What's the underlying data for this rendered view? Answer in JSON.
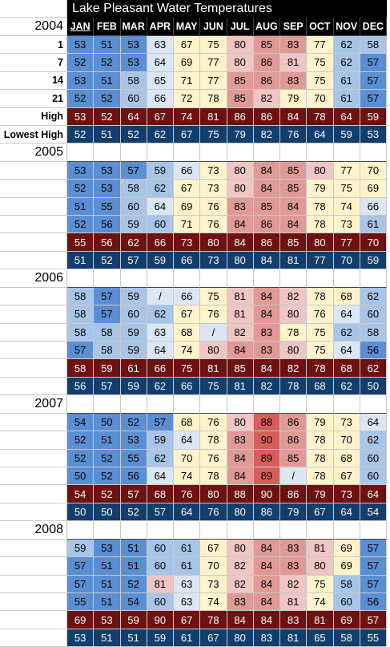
{
  "title": "Lake Pleasant Water Temperatures",
  "months": [
    "JAN",
    "FEB",
    "MAR",
    "APR",
    "MAY",
    "JUN",
    "JUL",
    "AUG",
    "SEP",
    "OCT",
    "NOV",
    "DEC"
  ],
  "colors": {
    "cold": "#5b8fd3",
    "cool": "#a8c4e6",
    "pale": "#dbe6f3",
    "mild": "#fff3cc",
    "warm": "#efc6c4",
    "hot": "#df9a96",
    "peak": "#d55f5b",
    "high_row": "#6e1111",
    "low_row": "#123e6e"
  },
  "years": [
    {
      "year": "2004",
      "rows": [
        {
          "label": "1",
          "kind": "day",
          "values": [
            "53",
            "51",
            "53",
            "63",
            "67",
            "75",
            "80",
            "85",
            "83",
            "77",
            "62",
            "58"
          ]
        },
        {
          "label": "7",
          "kind": "day",
          "values": [
            "52",
            "52",
            "53",
            "64",
            "69",
            "77",
            "80",
            "86",
            "81",
            "75",
            "62",
            "57"
          ]
        },
        {
          "label": "14",
          "kind": "day",
          "values": [
            "53",
            "51",
            "58",
            "65",
            "71",
            "77",
            "85",
            "86",
            "83",
            "75",
            "61",
            "57"
          ]
        },
        {
          "label": "21",
          "kind": "day",
          "values": [
            "52",
            "52",
            "60",
            "66",
            "72",
            "78",
            "85",
            "82",
            "79",
            "70",
            "61",
            "57"
          ]
        },
        {
          "label": "High",
          "kind": "high",
          "values": [
            "53",
            "52",
            "64",
            "67",
            "74",
            "81",
            "86",
            "86",
            "84",
            "78",
            "64",
            "59"
          ]
        },
        {
          "label": "Lowest High",
          "kind": "low",
          "values": [
            "52",
            "51",
            "52",
            "62",
            "67",
            "75",
            "79",
            "82",
            "76",
            "64",
            "59",
            "53"
          ]
        }
      ]
    },
    {
      "year": "2005",
      "rows": [
        {
          "label": "",
          "kind": "day",
          "values": [
            "53",
            "53",
            "57",
            "59",
            "66",
            "73",
            "80",
            "84",
            "85",
            "80",
            "77",
            "70"
          ]
        },
        {
          "label": "",
          "kind": "day",
          "values": [
            "52",
            "53",
            "58",
            "62",
            "67",
            "73",
            "80",
            "84",
            "85",
            "79",
            "75",
            "69"
          ]
        },
        {
          "label": "",
          "kind": "day",
          "values": [
            "51",
            "55",
            "60",
            "64",
            "69",
            "76",
            "83",
            "85",
            "84",
            "78",
            "74",
            "66"
          ]
        },
        {
          "label": "",
          "kind": "day",
          "values": [
            "52",
            "56",
            "59",
            "60",
            "71",
            "76",
            "84",
            "86",
            "84",
            "78",
            "73",
            "61"
          ]
        },
        {
          "label": "",
          "kind": "high",
          "values": [
            "55",
            "56",
            "62",
            "66",
            "73",
            "80",
            "84",
            "86",
            "85",
            "80",
            "77",
            "70"
          ]
        },
        {
          "label": "",
          "kind": "low",
          "values": [
            "51",
            "52",
            "57",
            "59",
            "66",
            "73",
            "80",
            "84",
            "81",
            "77",
            "70",
            "59"
          ]
        }
      ]
    },
    {
      "year": "2006",
      "rows": [
        {
          "label": "",
          "kind": "day",
          "values": [
            "58",
            "57",
            "59",
            "/",
            "66",
            "75",
            "81",
            "84",
            "82",
            "78",
            "68",
            "62"
          ]
        },
        {
          "label": "",
          "kind": "day",
          "values": [
            "58",
            "57",
            "60",
            "62",
            "67",
            "76",
            "81",
            "84",
            "80",
            "76",
            "64",
            "60"
          ]
        },
        {
          "label": "",
          "kind": "day",
          "values": [
            "58",
            "58",
            "59",
            "63",
            "68",
            "/",
            "82",
            "83",
            "78",
            "75",
            "62",
            "58"
          ]
        },
        {
          "label": "",
          "kind": "day",
          "values": [
            "57",
            "58",
            "59",
            "64",
            "74",
            "80",
            "84",
            "83",
            "80",
            "75",
            "64",
            "56"
          ]
        },
        {
          "label": "",
          "kind": "high",
          "values": [
            "58",
            "59",
            "61",
            "66",
            "75",
            "81",
            "85",
            "84",
            "82",
            "78",
            "68",
            "62"
          ]
        },
        {
          "label": "",
          "kind": "low",
          "values": [
            "56",
            "57",
            "59",
            "62",
            "66",
            "75",
            "81",
            "82",
            "78",
            "68",
            "62",
            "50"
          ]
        }
      ]
    },
    {
      "year": "2007",
      "rows": [
        {
          "label": "",
          "kind": "day",
          "values": [
            "54",
            "50",
            "52",
            "57",
            "68",
            "76",
            "80",
            "88",
            "86",
            "79",
            "73",
            "64"
          ]
        },
        {
          "label": "",
          "kind": "day",
          "values": [
            "52",
            "51",
            "53",
            "59",
            "64",
            "78",
            "83",
            "90",
            "86",
            "78",
            "70",
            "62"
          ]
        },
        {
          "label": "",
          "kind": "day",
          "values": [
            "52",
            "52",
            "55",
            "62",
            "70",
            "76",
            "84",
            "89",
            "85",
            "78",
            "68",
            "60"
          ]
        },
        {
          "label": "",
          "kind": "day",
          "values": [
            "50",
            "52",
            "56",
            "64",
            "74",
            "78",
            "84",
            "89",
            "/",
            "78",
            "67",
            "60"
          ]
        },
        {
          "label": "",
          "kind": "high",
          "values": [
            "54",
            "52",
            "57",
            "68",
            "76",
            "80",
            "88",
            "90",
            "86",
            "79",
            "73",
            "64"
          ]
        },
        {
          "label": "",
          "kind": "low",
          "values": [
            "50",
            "50",
            "52",
            "57",
            "64",
            "76",
            "80",
            "86",
            "79",
            "67",
            "64",
            "54"
          ]
        }
      ]
    },
    {
      "year": "2008",
      "rows": [
        {
          "label": "",
          "kind": "day",
          "values": [
            "59",
            "53",
            "51",
            "60",
            "61",
            "67",
            "80",
            "84",
            "83",
            "81",
            "69",
            "57"
          ]
        },
        {
          "label": "",
          "kind": "day",
          "values": [
            "57",
            "51",
            "51",
            "60",
            "61",
            "70",
            "82",
            "84",
            "83",
            "80",
            "69",
            "57"
          ]
        },
        {
          "label": "",
          "kind": "day",
          "values": [
            "57",
            "51",
            "52",
            "81",
            "63",
            "73",
            "82",
            "84",
            "82",
            "75",
            "58",
            "57"
          ]
        },
        {
          "label": "",
          "kind": "day",
          "values": [
            "55",
            "51",
            "54",
            "60",
            "63",
            "74",
            "83",
            "84",
            "81",
            "74",
            "60",
            "56"
          ]
        },
        {
          "label": "",
          "kind": "high",
          "values": [
            "69",
            "53",
            "59",
            "90",
            "67",
            "78",
            "84",
            "84",
            "83",
            "81",
            "69",
            "57"
          ]
        },
        {
          "label": "",
          "kind": "low",
          "values": [
            "53",
            "51",
            "51",
            "59",
            "61",
            "67",
            "80",
            "83",
            "81",
            "65",
            "58",
            "55"
          ]
        }
      ]
    }
  ]
}
